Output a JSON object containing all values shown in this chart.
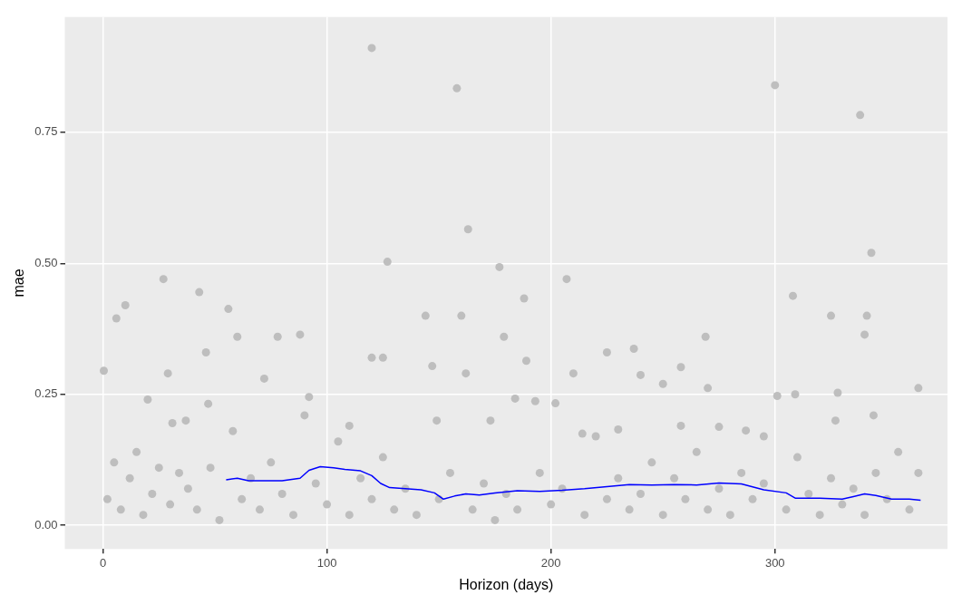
{
  "chart_data": {
    "type": "scatter",
    "xlabel": "Horizon (days)",
    "ylabel": "mae",
    "xlim": [
      -17,
      377
    ],
    "ylim": [
      -0.045,
      0.97
    ],
    "xticks": [
      0,
      100,
      200,
      300
    ],
    "yticks": [
      {
        "value": 0,
        "label": "0.00"
      },
      {
        "value": 0.25,
        "label": "0.25"
      },
      {
        "value": 0.5,
        "label": "0.50"
      },
      {
        "value": 0.75,
        "label": "0.75"
      }
    ],
    "grid": true,
    "legend": false,
    "series": [
      {
        "type": "scatter",
        "color": "#bebebe",
        "marker": "circle",
        "x": [
          120,
          158,
          300,
          338,
          163,
          343,
          127,
          177,
          27,
          207,
          43,
          308,
          10,
          56,
          188,
          144,
          325,
          6,
          160,
          341,
          78,
          88,
          60,
          269,
          340,
          46,
          225,
          237,
          179,
          125,
          120,
          189,
          0.4,
          29,
          210,
          240,
          258,
          147,
          162,
          250,
          72,
          328,
          364,
          309,
          301,
          92,
          47,
          20,
          202,
          184,
          270,
          193,
          327,
          173,
          344,
          149,
          31,
          37,
          258,
          275,
          287,
          295,
          214,
          230,
          110,
          2,
          5,
          8,
          12,
          15,
          18,
          22,
          25,
          30,
          34,
          38,
          42,
          48,
          52,
          58,
          62,
          66,
          70,
          75,
          80,
          85,
          90,
          95,
          100,
          105,
          110,
          115,
          120,
          125,
          130,
          135,
          140,
          150,
          155,
          165,
          170,
          175,
          180,
          185,
          195,
          200,
          205,
          215,
          220,
          225,
          230,
          235,
          240,
          245,
          250,
          255,
          260,
          265,
          270,
          275,
          280,
          285,
          290,
          295,
          305,
          310,
          315,
          320,
          325,
          330,
          335,
          340,
          345,
          350,
          355,
          360,
          364
        ],
        "values": [
          0.911,
          0.834,
          0.84,
          0.783,
          0.565,
          0.52,
          0.503,
          0.493,
          0.47,
          0.47,
          0.445,
          0.438,
          0.42,
          0.413,
          0.433,
          0.4,
          0.4,
          0.395,
          0.4,
          0.4,
          0.36,
          0.364,
          0.36,
          0.36,
          0.364,
          0.33,
          0.33,
          0.337,
          0.36,
          0.32,
          0.32,
          0.314,
          0.295,
          0.29,
          0.29,
          0.287,
          0.302,
          0.304,
          0.29,
          0.27,
          0.28,
          0.253,
          0.262,
          0.25,
          0.247,
          0.245,
          0.232,
          0.24,
          0.233,
          0.242,
          0.262,
          0.237,
          0.2,
          0.2,
          0.21,
          0.2,
          0.195,
          0.2,
          0.19,
          0.188,
          0.181,
          0.17,
          0.175,
          0.183,
          0.19,
          0.05,
          0.12,
          0.03,
          0.09,
          0.14,
          0.02,
          0.06,
          0.11,
          0.04,
          0.1,
          0.07,
          0.03,
          0.11,
          0.01,
          0.18,
          0.05,
          0.09,
          0.03,
          0.12,
          0.06,
          0.02,
          0.21,
          0.08,
          0.04,
          0.16,
          0.02,
          0.09,
          0.05,
          0.13,
          0.03,
          0.07,
          0.02,
          0.05,
          0.1,
          0.03,
          0.08,
          0.01,
          0.06,
          0.03,
          0.1,
          0.04,
          0.07,
          0.02,
          0.17,
          0.05,
          0.09,
          0.03,
          0.06,
          0.12,
          0.02,
          0.09,
          0.05,
          0.14,
          0.03,
          0.07,
          0.02,
          0.1,
          0.05,
          0.08,
          0.03,
          0.13,
          0.06,
          0.02,
          0.09,
          0.04,
          0.07,
          0.02,
          0.1,
          0.05,
          0.14,
          0.03,
          0.1
        ]
      },
      {
        "type": "line",
        "color": "#0000ff",
        "marker": "none",
        "line_style": "solid",
        "x": [
          55,
          60,
          65,
          70,
          80,
          88,
          92,
          97,
          103,
          108,
          115,
          120,
          124,
          128,
          135,
          142,
          148,
          152,
          157,
          162,
          168,
          175,
          185,
          195,
          205,
          215,
          225,
          235,
          245,
          255,
          265,
          275,
          285,
          295,
          305,
          309,
          320,
          330,
          335,
          340,
          345,
          352,
          360,
          365
        ],
        "values": [
          0.087,
          0.09,
          0.085,
          0.085,
          0.085,
          0.09,
          0.105,
          0.112,
          0.11,
          0.107,
          0.104,
          0.095,
          0.08,
          0.072,
          0.07,
          0.068,
          0.062,
          0.05,
          0.056,
          0.06,
          0.058,
          0.062,
          0.066,
          0.065,
          0.067,
          0.07,
          0.074,
          0.078,
          0.077,
          0.078,
          0.077,
          0.081,
          0.079,
          0.068,
          0.062,
          0.052,
          0.052,
          0.05,
          0.055,
          0.06,
          0.057,
          0.05,
          0.05,
          0.048
        ]
      }
    ]
  }
}
